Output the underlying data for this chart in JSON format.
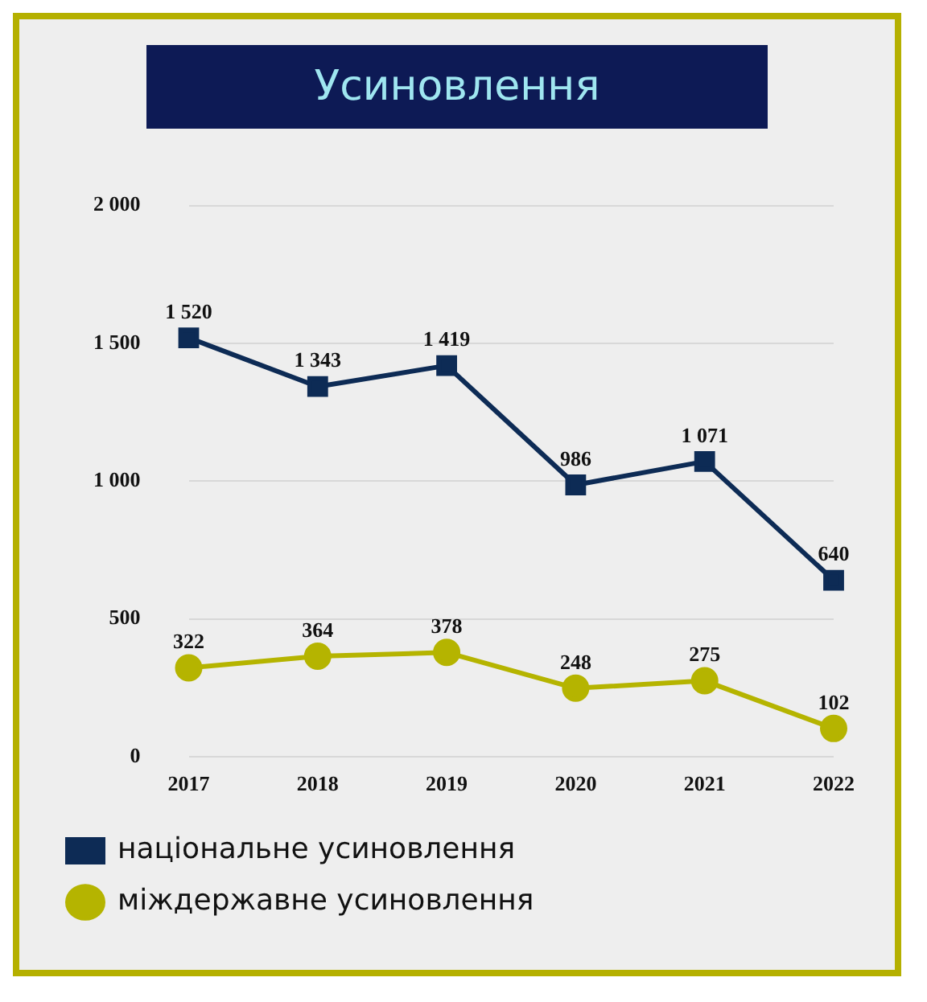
{
  "chart_data": {
    "type": "line",
    "title": "Усиновлення",
    "categories": [
      "2017",
      "2018",
      "2019",
      "2020",
      "2021",
      "2022"
    ],
    "series": [
      {
        "name": "національне усиновлення",
        "color": "#0d2b55",
        "marker": "square",
        "values": [
          1520,
          1343,
          1419,
          986,
          1071,
          640
        ],
        "value_labels": [
          "1 520",
          "1 343",
          "1 419",
          "986",
          "1 071",
          "640"
        ]
      },
      {
        "name": "міждержавне усиновлення",
        "color": "#b5b400",
        "marker": "circle",
        "values": [
          322,
          364,
          378,
          248,
          275,
          102
        ],
        "value_labels": [
          "322",
          "364",
          "378",
          "248",
          "275",
          "102"
        ]
      }
    ],
    "ylim": [
      0,
      2000
    ],
    "yticks": [
      0,
      500,
      {
        "value": 1000,
        "label": "1 000"
      },
      {
        "value": 1500,
        "label": "1 500"
      },
      {
        "value": 2000,
        "label": "2 000"
      }
    ],
    "grid": "y",
    "legend": "bottom"
  }
}
